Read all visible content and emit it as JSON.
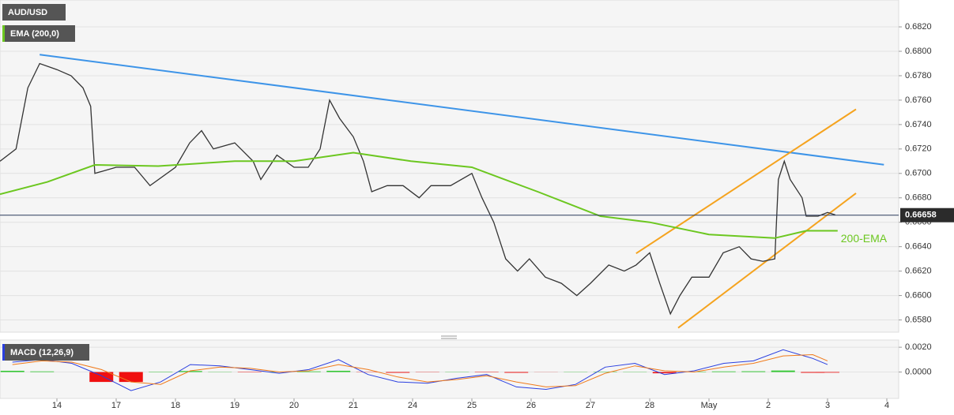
{
  "chart_data": [
    {
      "type": "line",
      "xlim": [
        -0.96,
        14.2
      ],
      "ylim": [
        0.657,
        0.6842
      ],
      "yticks": [
        {
          "value": 0.658,
          "label": "0.6580"
        },
        {
          "value": 0.66,
          "label": "0.6600"
        },
        {
          "value": 0.662,
          "label": "0.6620"
        },
        {
          "value": 0.664,
          "label": "0.6640"
        },
        {
          "value": 0.666,
          "label": "0.6660"
        },
        {
          "value": 0.668,
          "label": "0.6680"
        },
        {
          "value": 0.67,
          "label": "0.6700"
        },
        {
          "value": 0.672,
          "label": "0.6720"
        },
        {
          "value": 0.674,
          "label": "0.6740"
        },
        {
          "value": 0.676,
          "label": "0.6760"
        },
        {
          "value": 0.678,
          "label": "0.6780"
        },
        {
          "value": 0.68,
          "label": "0.6800"
        },
        {
          "value": 0.682,
          "label": "0.6820"
        }
      ],
      "grid": true,
      "series": [
        {
          "name": "AUD/USD",
          "color": "#333333",
          "x": [
            -0.96,
            -0.69,
            -0.49,
            -0.29,
            0,
            0.24,
            0.44,
            0.57,
            0.64,
            1,
            1.31,
            1.57,
            2,
            2.24,
            2.44,
            2.64,
            3,
            3.31,
            3.44,
            3.71,
            4,
            4.24,
            4.44,
            4.6,
            4.77,
            5,
            5.17,
            5.31,
            5.57,
            5.84,
            6.11,
            6.31,
            6.64,
            7,
            7.17,
            7.37,
            7.57,
            7.77,
            7.97,
            8.24,
            8.51,
            8.77,
            9,
            9.31,
            9.57,
            9.77,
            10,
            10.17,
            10.35,
            10.51,
            10.71,
            11,
            11.24,
            11.51,
            11.71,
            11.91,
            12.11,
            12.17,
            12.27,
            12.37,
            12.57,
            12.64,
            12.84,
            13,
            13.13
          ],
          "values": [
            0.671,
            0.672,
            0.677,
            0.679,
            0.6785,
            0.678,
            0.677,
            0.6755,
            0.67,
            0.6705,
            0.6705,
            0.669,
            0.6705,
            0.6725,
            0.6735,
            0.672,
            0.6725,
            0.671,
            0.6695,
            0.6715,
            0.6705,
            0.6705,
            0.672,
            0.676,
            0.6745,
            0.673,
            0.671,
            0.6685,
            0.669,
            0.669,
            0.668,
            0.669,
            0.669,
            0.67,
            0.668,
            0.666,
            0.663,
            0.662,
            0.663,
            0.6615,
            0.661,
            0.66,
            0.661,
            0.6625,
            0.662,
            0.6625,
            0.6635,
            0.661,
            0.6585,
            0.66,
            0.6615,
            0.6615,
            0.6635,
            0.664,
            0.663,
            0.6628,
            0.663,
            0.6695,
            0.671,
            0.6695,
            0.668,
            0.6665,
            0.6665,
            0.6668,
            0.6666
          ]
        },
        {
          "name": "EMA (200,0)",
          "color": "#6cc720",
          "x": [
            -0.96,
            -0.16,
            0.64,
            1.71,
            3,
            4,
            5,
            5.97,
            7,
            8.11,
            9.17,
            10,
            11,
            12.11,
            12.64,
            13.17
          ],
          "values": [
            0.6683,
            0.6693,
            0.6707,
            0.6706,
            0.671,
            0.671,
            0.6717,
            0.671,
            0.6705,
            0.6685,
            0.6665,
            0.666,
            0.665,
            0.6647,
            0.6653,
            0.6653
          ]
        }
      ],
      "lines": [
        {
          "color": "#3d94e8",
          "x": [
            -0.29,
            13.95
          ],
          "values": [
            0.67973,
            0.67071
          ]
        },
        {
          "color": "#f5a31e",
          "x": [
            9.77,
            13.48
          ],
          "values": [
            0.66345,
            0.67525
          ]
        },
        {
          "color": "#f5a31e",
          "x": [
            10.48,
            13.48
          ],
          "values": [
            0.65735,
            0.66838
          ]
        }
      ],
      "annotation": "200-EMA",
      "last_price": {
        "value": 0.66658,
        "label": "0.66658"
      }
    },
    {
      "type": "macd",
      "title": "MACD (12,26,9)",
      "xlim": [
        -0.96,
        14.2
      ],
      "ylim": [
        -0.00213,
        0.00258
      ],
      "yticks": [
        {
          "value": 0,
          "label": "0.0000"
        },
        {
          "value": 0.002,
          "label": "0.0020"
        }
      ],
      "xticks": [
        {
          "value": 0,
          "label": "14"
        },
        {
          "value": 1,
          "label": "17"
        },
        {
          "value": 2,
          "label": "18"
        },
        {
          "value": 3,
          "label": "19"
        },
        {
          "value": 4,
          "label": "20"
        },
        {
          "value": 5,
          "label": "21"
        },
        {
          "value": 6,
          "label": "24"
        },
        {
          "value": 7,
          "label": "25"
        },
        {
          "value": 8,
          "label": "26"
        },
        {
          "value": 9,
          "label": "27"
        },
        {
          "value": 10,
          "label": "28"
        },
        {
          "value": 11,
          "label": "May"
        },
        {
          "value": 12,
          "label": "2"
        },
        {
          "value": 13,
          "label": "3"
        },
        {
          "value": 14,
          "label": "4"
        }
      ],
      "x": [
        -0.75,
        -0.25,
        0.25,
        0.75,
        1.25,
        1.75,
        2.25,
        2.75,
        3.25,
        3.75,
        4.25,
        4.75,
        5.25,
        5.75,
        6.25,
        6.75,
        7.25,
        7.75,
        8.25,
        8.75,
        9.25,
        9.75,
        10.25,
        10.75,
        11.25,
        11.75,
        12.25,
        12.75,
        13
      ],
      "histogram": [
        0.0001,
        5e-05,
        0,
        -0.0008,
        -0.0008,
        3e-05,
        8e-05,
        2e-05,
        -3e-05,
        3e-05,
        5e-05,
        0.0001,
        -2e-05,
        -6e-05,
        -2e-05,
        2e-05,
        -3e-05,
        -6e-05,
        -1e-05,
        2e-05,
        3e-05,
        2e-05,
        -0.0001,
        3e-05,
        5e-05,
        6e-05,
        0.00012,
        -6e-05,
        -5e-05
      ],
      "up_color": "#34c934",
      "down_color": "#f01010",
      "series": [
        {
          "color": "#2a3fe0",
          "values": [
            0.0008,
            0.001,
            0.0007,
            -0.0003,
            -0.0015,
            -0.0008,
            0.0006,
            0.0005,
            0.0002,
            -0.0001,
            0.0002,
            0.001,
            -0.0002,
            -0.0008,
            -0.0009,
            -0.0005,
            -0.0002,
            -0.0012,
            -0.0014,
            -0.001,
            0.0004,
            0.0007,
            -0.0002,
            0.0001,
            0.0007,
            0.0009,
            0.0018,
            0.0011,
            0.0006
          ]
        },
        {
          "color": "#f07a1a",
          "values": [
            0.0006,
            0.0009,
            0.0008,
            0.0002,
            -0.0008,
            -0.001,
            0.0001,
            0.0004,
            0.0003,
            0.0,
            0.0001,
            0.0006,
            0.0002,
            -0.0004,
            -0.0008,
            -0.0006,
            -0.0003,
            -0.0008,
            -0.0012,
            -0.0011,
            -0.0001,
            0.0005,
            0.0001,
            0.0,
            0.0004,
            0.0007,
            0.0013,
            0.0014,
            0.0009
          ]
        }
      ]
    }
  ]
}
